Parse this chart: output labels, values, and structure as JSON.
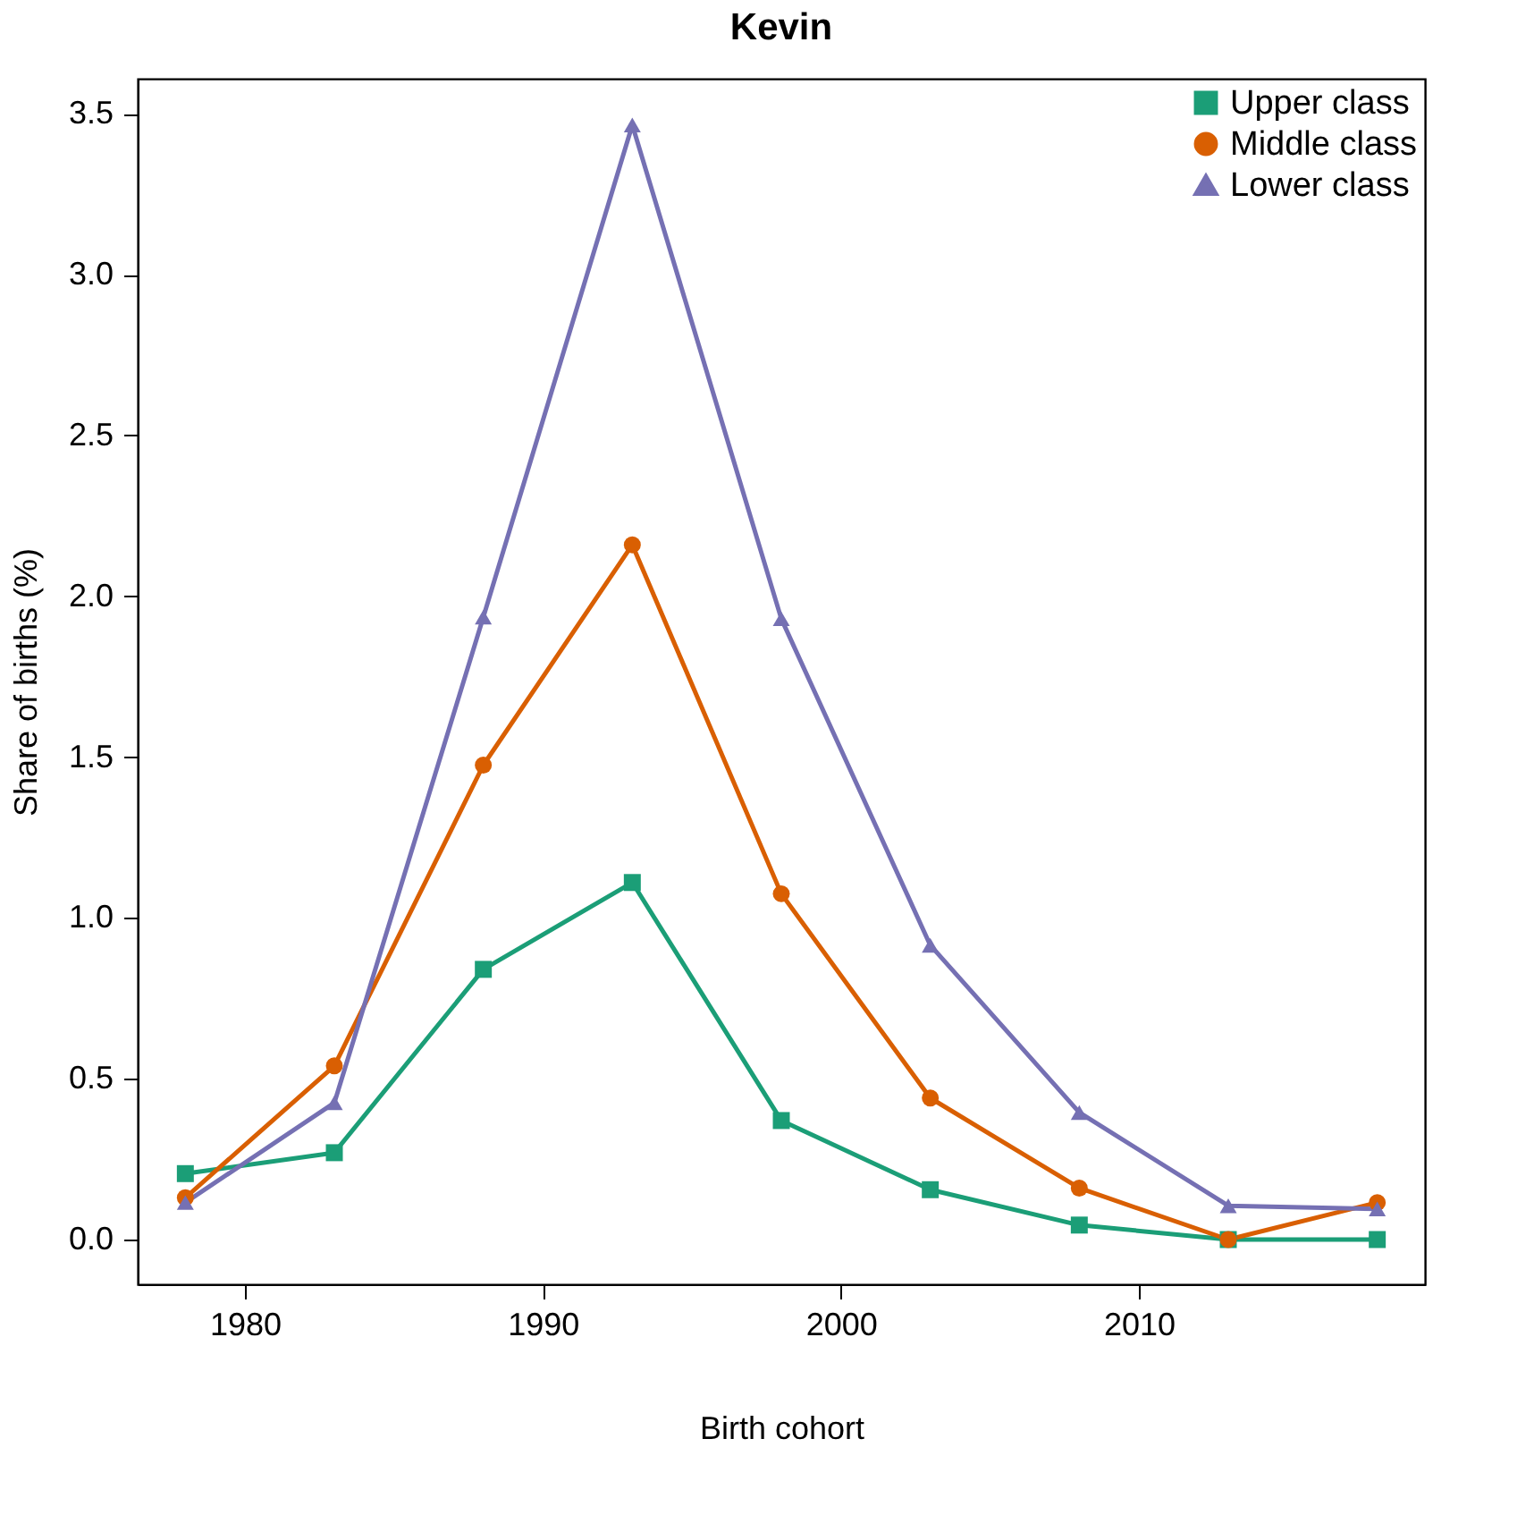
{
  "chart_data": {
    "type": "line",
    "title": "Kevin",
    "xlabel": "Birth cohort",
    "ylabel": "Share of births (%)",
    "x": [
      1978,
      1983,
      1988,
      1993,
      1998,
      2003,
      2008,
      2013,
      2018
    ],
    "xlim": [
      1976.4,
      2019.6
    ],
    "xticks": [
      1980,
      1990,
      2000,
      2010
    ],
    "ylim": [
      -0.139,
      3.609
    ],
    "yticks": [
      {
        "value": 0,
        "label": "0.0"
      },
      0.5,
      {
        "value": 1,
        "label": "1.0"
      },
      1.5,
      {
        "value": 2,
        "label": "2.0"
      },
      2.5,
      {
        "value": 3,
        "label": "3.0"
      },
      3.5
    ],
    "grid": false,
    "legend": "top right",
    "line_style": "solid",
    "series": [
      {
        "name": "Upper class",
        "color": "#1b9e77",
        "marker": "square",
        "values": [
          0.205,
          0.27,
          0.84,
          1.11,
          0.37,
          0.155,
          0.045,
          0,
          0
        ]
      },
      {
        "name": "Middle class",
        "color": "#d95f02",
        "marker": "circle",
        "values": [
          0.13,
          0.54,
          1.475,
          2.16,
          1.075,
          0.44,
          0.16,
          0,
          0.115
        ]
      },
      {
        "name": "Lower class",
        "color": "#7570b3",
        "marker": "triangle",
        "values": [
          0.115,
          0.425,
          1.935,
          3.465,
          1.93,
          0.915,
          0.395,
          0.105,
          0.095
        ]
      }
    ]
  }
}
